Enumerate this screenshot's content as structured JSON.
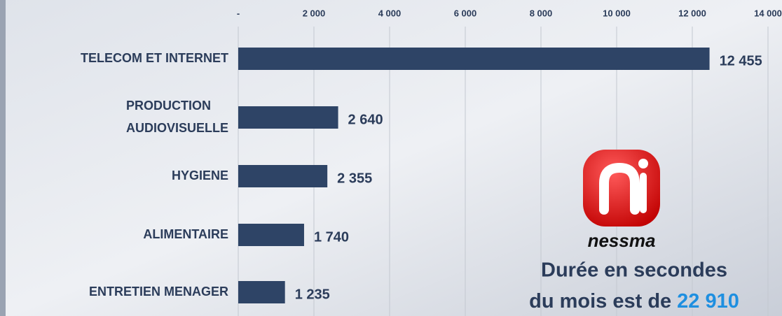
{
  "chart_data": {
    "type": "bar",
    "orientation": "horizontal",
    "categories": [
      "TELECOM ET INTERNET",
      "PRODUCTION AUDIOVISUELLE",
      "HYGIENE",
      "ALIMENTAIRE",
      "ENTRETIEN MENAGER"
    ],
    "values": [
      12455,
      2640,
      2355,
      1740,
      1235
    ],
    "value_labels": [
      "12 455",
      "2 640",
      "2 355",
      "1 740",
      "1 235"
    ],
    "color": "#2e4466",
    "xlim": [
      0,
      14000
    ],
    "xticks": [
      {
        "value": 0,
        "label": "-"
      },
      {
        "value": 2000,
        "label": "2 000"
      },
      {
        "value": 4000,
        "label": "4 000"
      },
      {
        "value": 6000,
        "label": "6 000"
      },
      {
        "value": 8000,
        "label": "8 000"
      },
      {
        "value": 10000,
        "label": "10 000"
      },
      {
        "value": 12000,
        "label": "12 000"
      },
      {
        "value": 14000,
        "label": "14 000"
      }
    ],
    "grid": true,
    "logo": "nessma",
    "annotation": [
      "Durée en secondes",
      "du mois est de",
      "22 910"
    ]
  }
}
